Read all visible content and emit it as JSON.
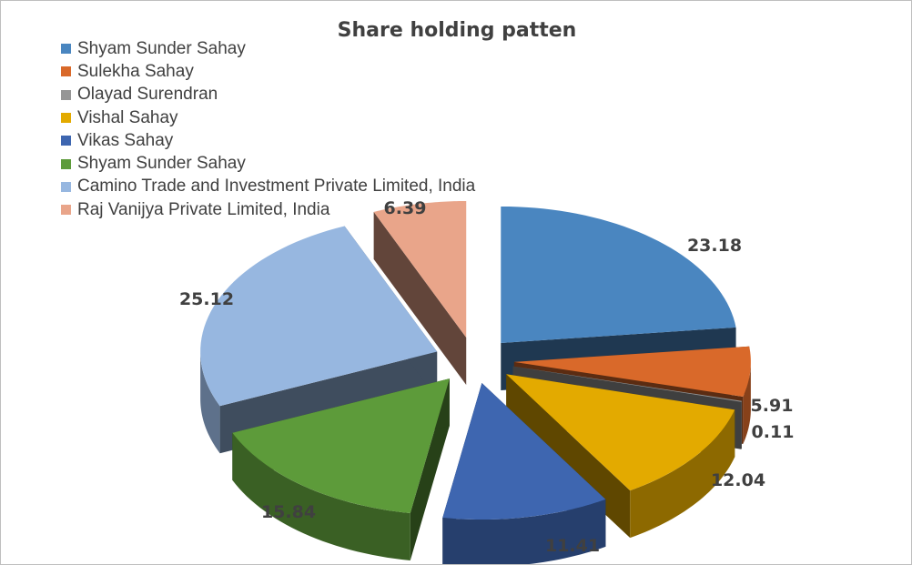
{
  "chart_data": {
    "type": "pie",
    "title": "Share holding patten",
    "legend_position": "top-left",
    "exploded": true,
    "three_d": true,
    "slices": [
      {
        "label": "Shyam Sunder Sahay",
        "value": 23.18,
        "color": "#4a86c0"
      },
      {
        "label": "Sulekha Sahay",
        "value": 5.91,
        "color": "#d9692a"
      },
      {
        "label": "Olayad Surendran",
        "value": 0.11,
        "color": "#969696"
      },
      {
        "label": "Vishal Sahay",
        "value": 12.04,
        "color": "#e3aa00"
      },
      {
        "label": "Vikas Sahay",
        "value": 11.41,
        "color": "#3e66b0"
      },
      {
        "label": "Shyam Sunder Sahay",
        "value": 15.84,
        "color": "#5d9b3a"
      },
      {
        "label": "Camino Trade and Investment Private Limited, India",
        "value": 25.12,
        "color": "#97b7e0"
      },
      {
        "label": "Raj Vanijya Private Limited, India",
        "value": 6.39,
        "color": "#e9a58a"
      }
    ],
    "data_labels": [
      "23.18",
      "5.91",
      "0.11",
      "12.04",
      "11.41",
      "15.84",
      "25.12",
      "6.39"
    ]
  }
}
